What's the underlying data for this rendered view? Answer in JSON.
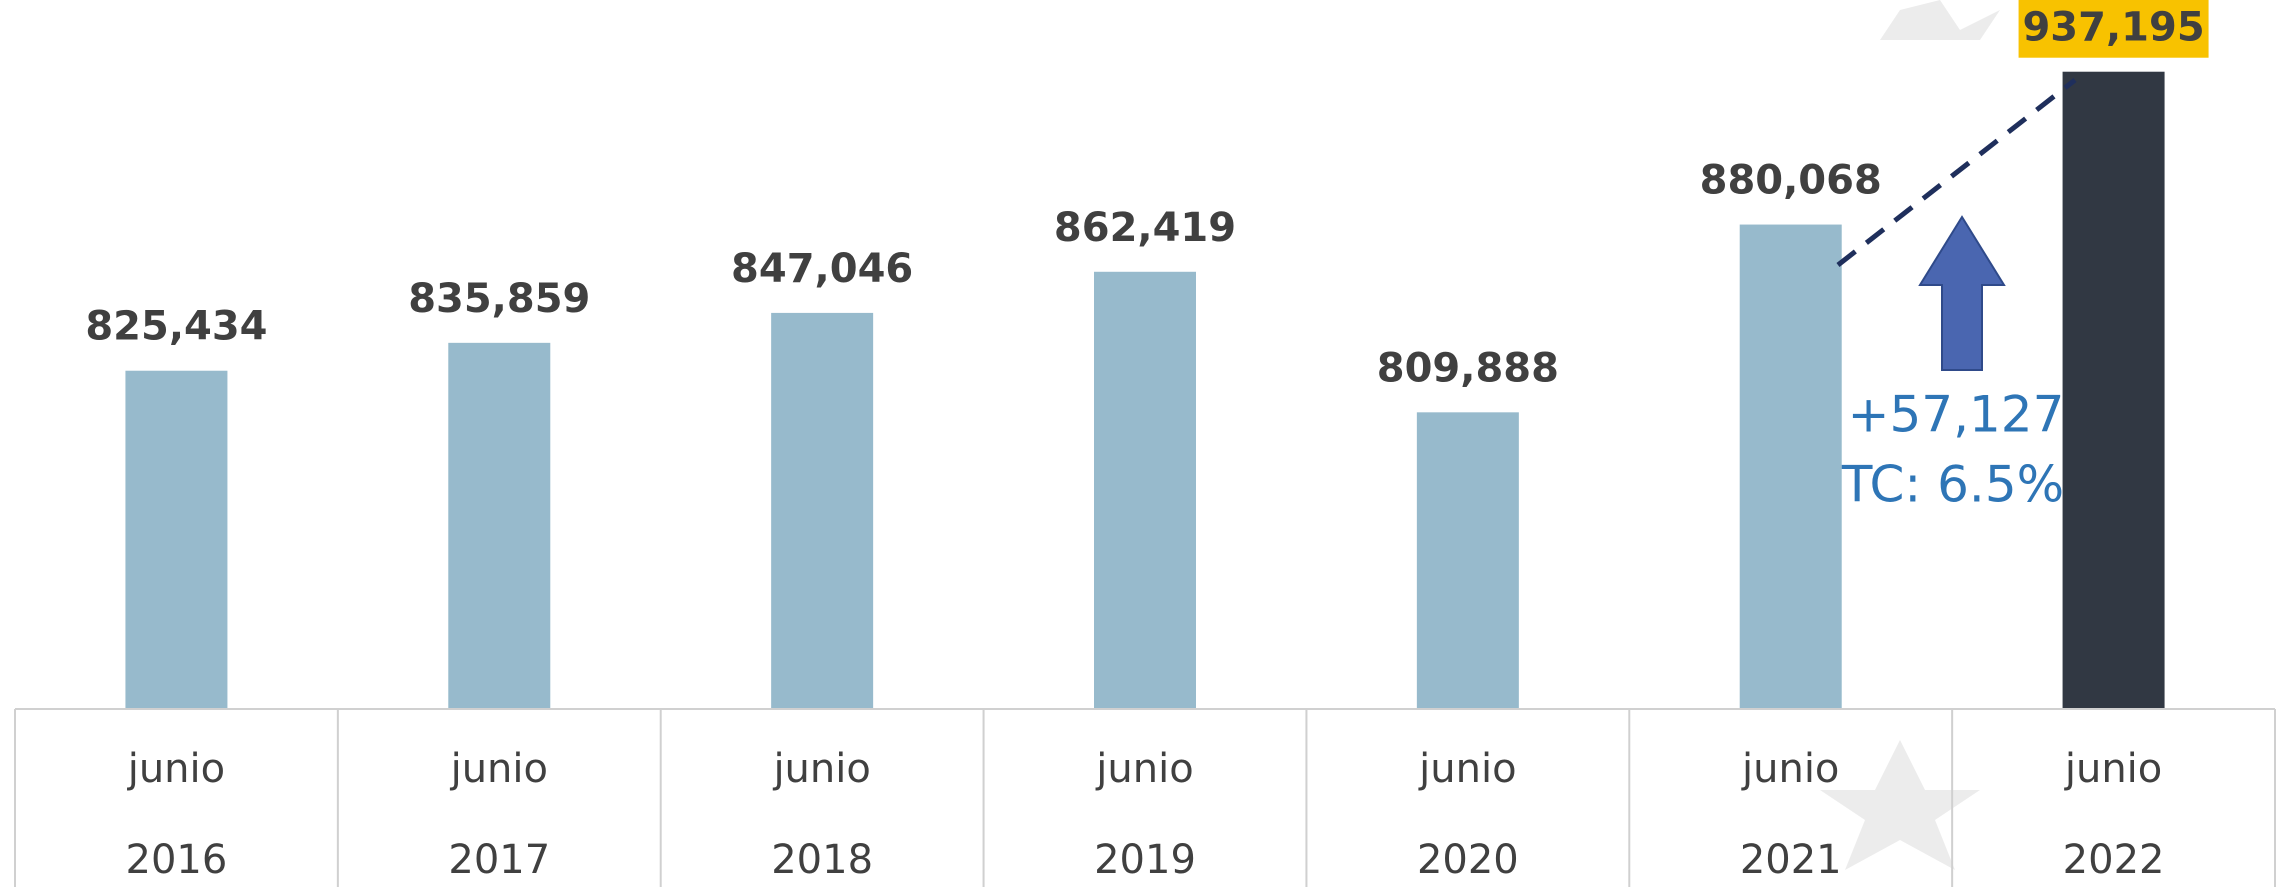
{
  "chart_data": {
    "type": "bar",
    "categories": [
      [
        "junio",
        "2016"
      ],
      [
        "junio",
        "2017"
      ],
      [
        "junio",
        "2018"
      ],
      [
        "junio",
        "2019"
      ],
      [
        "junio",
        "2020"
      ],
      [
        "junio",
        "2021"
      ],
      [
        "junio",
        "2022"
      ]
    ],
    "values": [
      825434,
      835859,
      847046,
      862419,
      809888,
      880068,
      937195
    ],
    "value_labels": [
      "825,434",
      "835,859",
      "847,046",
      "862,419",
      "809,888",
      "880,068",
      "937,195"
    ],
    "colors": [
      "#97bacc",
      "#97bacc",
      "#97bacc",
      "#97bacc",
      "#97bacc",
      "#97bacc",
      "#313843"
    ],
    "ylim": [
      699000,
      964000
    ],
    "annotations": [
      "+57,127",
      "TC: 6.5%"
    ]
  }
}
